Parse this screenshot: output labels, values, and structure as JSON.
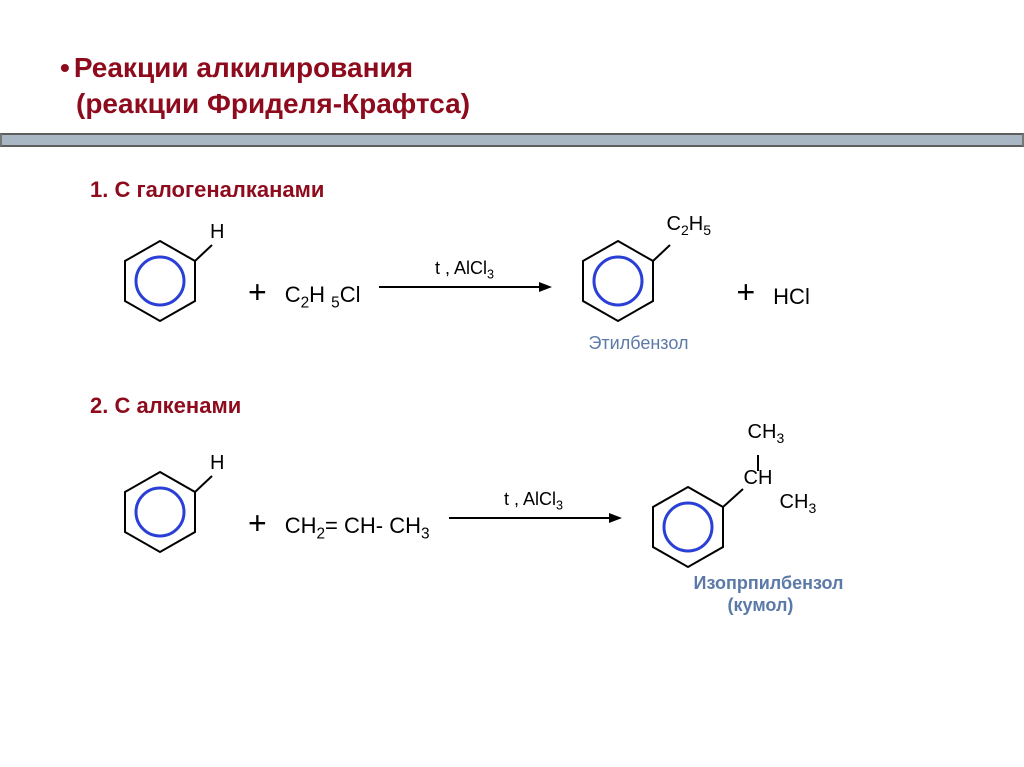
{
  "title_line1_bullet": "•",
  "title_line1": "Реакции алкилирования",
  "title_line2": "(реакции Фриделя-Крафтса)",
  "section1": {
    "heading": "1. С галогеналканами",
    "benzene1_sub": "H",
    "reagent": "C₂H ₅Cl",
    "reagent_html": "C<sub>2</sub>H <sub>5</sub>Cl",
    "arrow_cond": "t ,  AlCl<sub>3</sub>",
    "benzene2_sub": "C<sub>2</sub>H<sub>5</sub>",
    "byproduct": "HCl",
    "product_name": "Этилбензол"
  },
  "section2": {
    "heading": "2. С алкенами",
    "benzene1_sub": "H",
    "reagent_html": "CH<sub>2</sub>= CH- CH<sub>3</sub>",
    "arrow_cond": "t ,  AlCl<sub>3</sub>",
    "product_top": "CH<sub>3</sub>",
    "product_mid": "CH",
    "product_bot": "CH<sub>3</sub>",
    "product_name_l1": "Изопрпилбензол",
    "product_name_l2": "(кумол)"
  },
  "colors": {
    "heading": "#8e0b1d",
    "bar_fill": "#a9b6c4",
    "bar_border": "#5e5e5e",
    "circle": "#2a3fd6",
    "hex": "#000000",
    "caption": "#5b7aa8"
  }
}
